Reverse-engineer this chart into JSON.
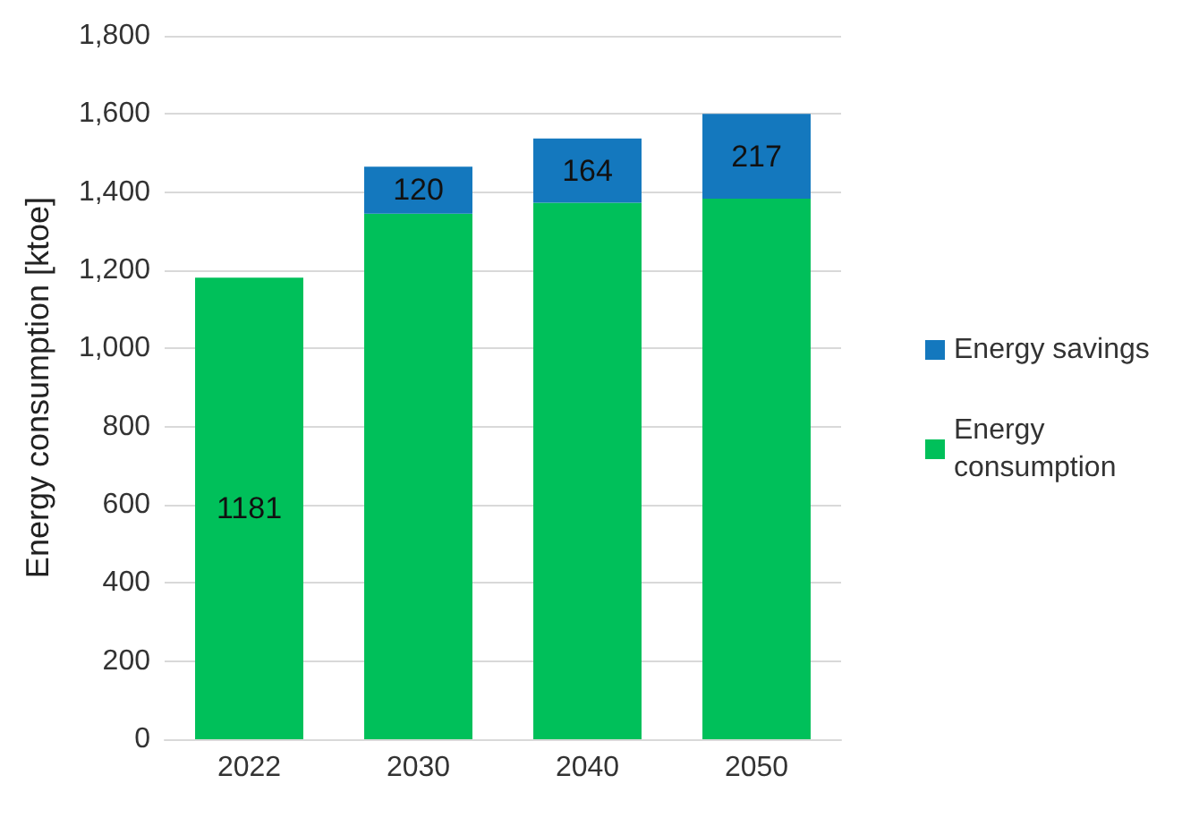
{
  "chart_data": {
    "type": "bar",
    "stacked": true,
    "ylabel": "Energy consumption [ktoe]",
    "categories": [
      "2022",
      "2030",
      "2040",
      "2050"
    ],
    "series": [
      {
        "name": "Energy consumption",
        "color": "#00c05a",
        "values": [
          1181,
          1345,
          1373,
          1383
        ],
        "value_labels": [
          "1181",
          null,
          null,
          null
        ]
      },
      {
        "name": "Energy savings",
        "color": "#1478be",
        "values": [
          null,
          120,
          164,
          217
        ],
        "value_labels": [
          null,
          "120",
          "164",
          "217"
        ]
      }
    ],
    "ylim": [
      0,
      1800
    ],
    "yticks": [
      0,
      {
        "value": 200,
        "label": "200"
      },
      {
        "value": 400,
        "label": "400"
      },
      {
        "value": 600,
        "label": "600"
      },
      {
        "value": 800,
        "label": "800"
      },
      {
        "value": 1000,
        "label": "1,000"
      },
      {
        "value": 1200,
        "label": "1,200"
      },
      {
        "value": 1400,
        "label": "1,400"
      },
      {
        "value": 1600,
        "label": "1,600"
      },
      {
        "value": 1800,
        "label": "1,800"
      }
    ],
    "grid": "y",
    "legend": "right"
  }
}
